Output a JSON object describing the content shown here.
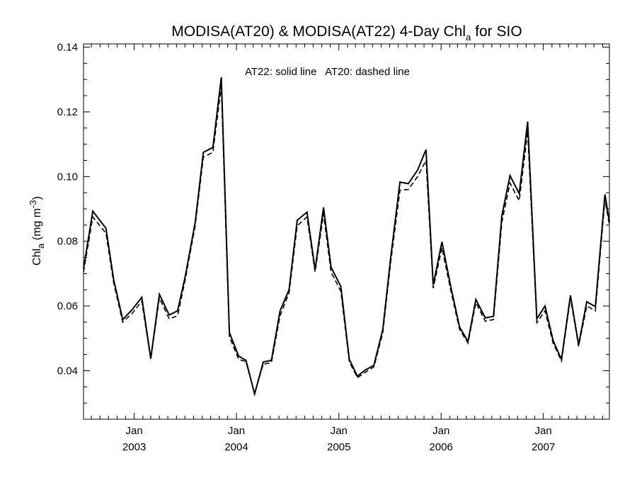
{
  "chart_data": {
    "type": "line",
    "title": {
      "main": "MODISA(AT20) & MODISA(AT22) 4-Day Chl",
      "sub": "a",
      "suffix": " for SIO"
    },
    "ylabel": {
      "main": "Chl",
      "sub": "a",
      "rest": " (mg m",
      "sup": "-3",
      "close": ")"
    },
    "annotation": "AT22: solid line   AT20: dashed line",
    "ylim": [
      0.025,
      0.141
    ],
    "yticks": [
      0.04,
      0.06,
      0.08,
      0.1,
      0.12,
      0.14
    ],
    "ytick_labels": [
      "0.04",
      "0.06",
      "0.08",
      "0.10",
      "0.12",
      "0.14"
    ],
    "xlim": [
      "2002-07-04",
      "2007-08-25"
    ],
    "xticks": [
      {
        "date": "2003-01-01",
        "month": "Jan",
        "year": "2003"
      },
      {
        "date": "2004-01-01",
        "month": "Jan",
        "year": "2004"
      },
      {
        "date": "2005-01-01",
        "month": "Jan",
        "year": "2005"
      },
      {
        "date": "2006-01-01",
        "month": "Jan",
        "year": "2006"
      },
      {
        "date": "2007-01-01",
        "month": "Jan",
        "year": "2007"
      }
    ],
    "grid": false,
    "x": [
      "2002-07-04",
      "2002-08-06",
      "2002-09-22",
      "2002-10-20",
      "2002-11-21",
      "2002-12-26",
      "2003-01-28",
      "2003-03-01",
      "2003-04-01",
      "2003-05-06",
      "2003-06-05",
      "2003-07-02",
      "2003-08-07",
      "2003-09-05",
      "2003-10-09",
      "2003-11-08",
      "2003-12-07",
      "2004-01-09",
      "2004-02-04",
      "2004-03-06",
      "2004-04-06",
      "2004-05-05",
      "2004-06-05",
      "2004-07-07",
      "2004-08-05",
      "2004-09-09",
      "2004-10-08",
      "2004-11-07",
      "2004-12-04",
      "2005-01-08",
      "2005-02-07",
      "2005-03-08",
      "2005-04-05",
      "2005-05-06",
      "2005-06-07",
      "2005-07-05",
      "2005-08-07",
      "2005-09-06",
      "2005-10-09",
      "2005-11-08",
      "2005-12-04",
      "2006-01-04",
      "2006-02-04",
      "2006-03-08",
      "2006-04-07",
      "2006-05-05",
      "2006-06-08",
      "2006-07-07",
      "2006-08-06",
      "2006-09-04",
      "2006-10-07",
      "2006-11-06",
      "2006-12-09",
      "2007-01-07",
      "2007-02-05",
      "2007-03-07",
      "2007-04-08",
      "2007-05-07",
      "2007-06-05",
      "2007-07-06",
      "2007-08-09",
      "2007-08-25"
    ],
    "series": [
      {
        "name": "AT22",
        "style": "solid",
        "color": "#000000",
        "values": [
          0.0715,
          0.0893,
          0.084,
          0.068,
          0.0558,
          0.059,
          0.0627,
          0.0438,
          0.0636,
          0.0572,
          0.0585,
          0.069,
          0.086,
          0.1075,
          0.109,
          0.1307,
          0.0518,
          0.0445,
          0.0432,
          0.0328,
          0.0427,
          0.0432,
          0.0585,
          0.065,
          0.0865,
          0.089,
          0.0712,
          0.0905,
          0.072,
          0.066,
          0.0435,
          0.0383,
          0.0402,
          0.0417,
          0.0528,
          0.075,
          0.0983,
          0.0978,
          0.102,
          0.1083,
          0.0665,
          0.0798,
          0.0662,
          0.0535,
          0.049,
          0.062,
          0.0563,
          0.0568,
          0.088,
          0.1003,
          0.0947,
          0.117,
          0.056,
          0.06,
          0.0493,
          0.0435,
          0.0633,
          0.048,
          0.0613,
          0.0598,
          0.0945,
          0.086
        ]
      },
      {
        "name": "AT20",
        "style": "dashed",
        "color": "#000000",
        "values": [
          0.0705,
          0.0875,
          0.0825,
          0.067,
          0.055,
          0.0578,
          0.0615,
          0.0435,
          0.0625,
          0.056,
          0.057,
          0.068,
          0.085,
          0.106,
          0.1075,
          0.128,
          0.0505,
          0.0435,
          0.0428,
          0.033,
          0.042,
          0.0425,
          0.057,
          0.064,
          0.0848,
          0.0875,
          0.0705,
          0.0885,
          0.0705,
          0.0645,
          0.0428,
          0.0378,
          0.0395,
          0.0412,
          0.0518,
          0.0735,
          0.0958,
          0.096,
          0.1,
          0.105,
          0.0655,
          0.078,
          0.065,
          0.0528,
          0.0485,
          0.061,
          0.0553,
          0.0558,
          0.086,
          0.098,
          0.0925,
          0.114,
          0.0548,
          0.0585,
          0.0485,
          0.043,
          0.0625,
          0.0475,
          0.06,
          0.0585,
          0.093,
          0.085
        ]
      }
    ]
  }
}
